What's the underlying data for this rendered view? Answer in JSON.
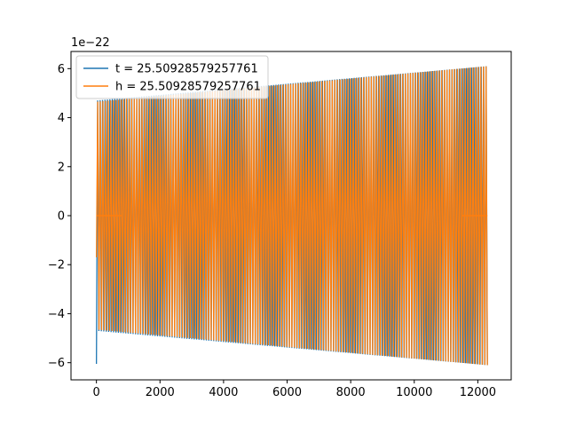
{
  "chart_data": {
    "type": "line",
    "title": "",
    "xlabel": "",
    "ylabel": "",
    "y_offset_label": "1e−22",
    "xlim": [
      -800,
      13050
    ],
    "ylim": [
      -6.7,
      6.7
    ],
    "x_ticks": [
      0,
      2000,
      4000,
      6000,
      8000,
      10000,
      12000
    ],
    "x_tick_labels": [
      "0",
      "2000",
      "4000",
      "6000",
      "8000",
      "10000",
      "12000"
    ],
    "y_ticks": [
      -6,
      -4,
      -2,
      0,
      2,
      4,
      6
    ],
    "y_tick_labels": [
      "−6",
      "−4",
      "−2",
      "0",
      "2",
      "4",
      "6"
    ],
    "grid": false,
    "legend_position": "upper-left",
    "series": [
      {
        "name": "t = 25.50928579257761",
        "color": "#1f77b4",
        "x_range": [
          0,
          12300
        ],
        "amplitude_start": 4.7,
        "amplitude_end": 6.1,
        "min_value": -6.05,
        "cycles": 160,
        "zero_segments": []
      },
      {
        "name": "h = 25.50928579257761",
        "color": "#ff7f0e",
        "x_range": [
          0,
          12300
        ],
        "amplitude_start": 4.65,
        "amplitude_end": 6.1,
        "start_value": -1.7,
        "cycles": 150,
        "zero_segments": [
          [
            0,
            800
          ],
          [
            11500,
            12300
          ]
        ]
      }
    ]
  }
}
